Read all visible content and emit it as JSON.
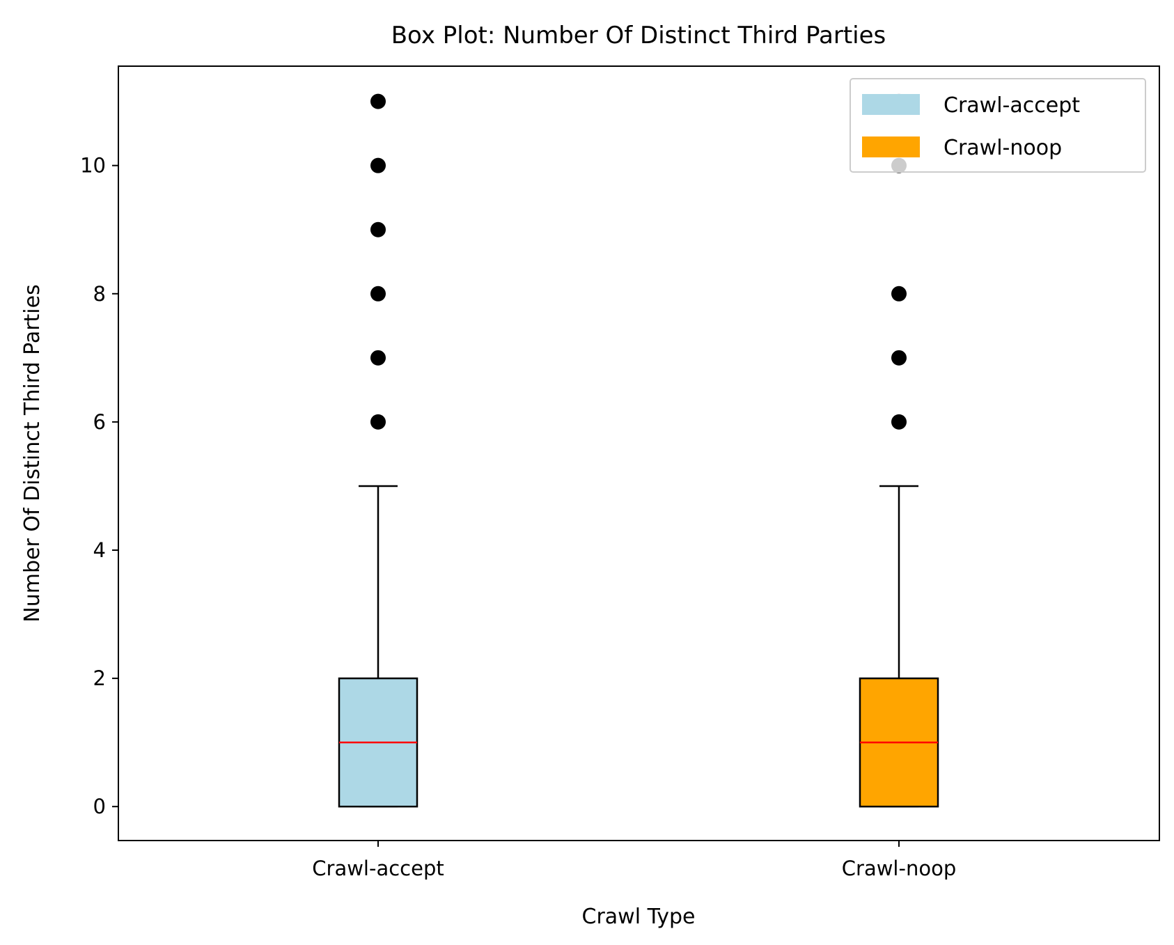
{
  "chart_data": {
    "type": "box",
    "title": "Box Plot: Number Of Distinct Third Parties",
    "xlabel": "Crawl Type",
    "ylabel": "Number Of Distinct Third Parties",
    "categories": [
      "Crawl-accept",
      "Crawl-noop"
    ],
    "yticks": [
      0,
      2,
      4,
      6,
      8,
      10
    ],
    "ylim": [
      -0.53,
      11.55
    ],
    "grid": false,
    "legend": {
      "position": "top-right",
      "entries": [
        {
          "label": "Crawl-accept",
          "color": "#add8e6"
        },
        {
          "label": "Crawl-noop",
          "color": "#ffa500"
        }
      ]
    },
    "series": [
      {
        "name": "Crawl-accept",
        "color": "#add8e6",
        "whisker_low": 0,
        "q1": 0,
        "median": 1,
        "q3": 2,
        "whisker_high": 5,
        "outliers": [
          6,
          7,
          8,
          9,
          10,
          11
        ]
      },
      {
        "name": "Crawl-noop",
        "color": "#ffa500",
        "whisker_low": 0,
        "q1": 0,
        "median": 1,
        "q3": 2,
        "whisker_high": 5,
        "outliers": [
          6,
          7,
          8,
          10,
          11
        ]
      }
    ],
    "median_color": "#ff0000"
  }
}
